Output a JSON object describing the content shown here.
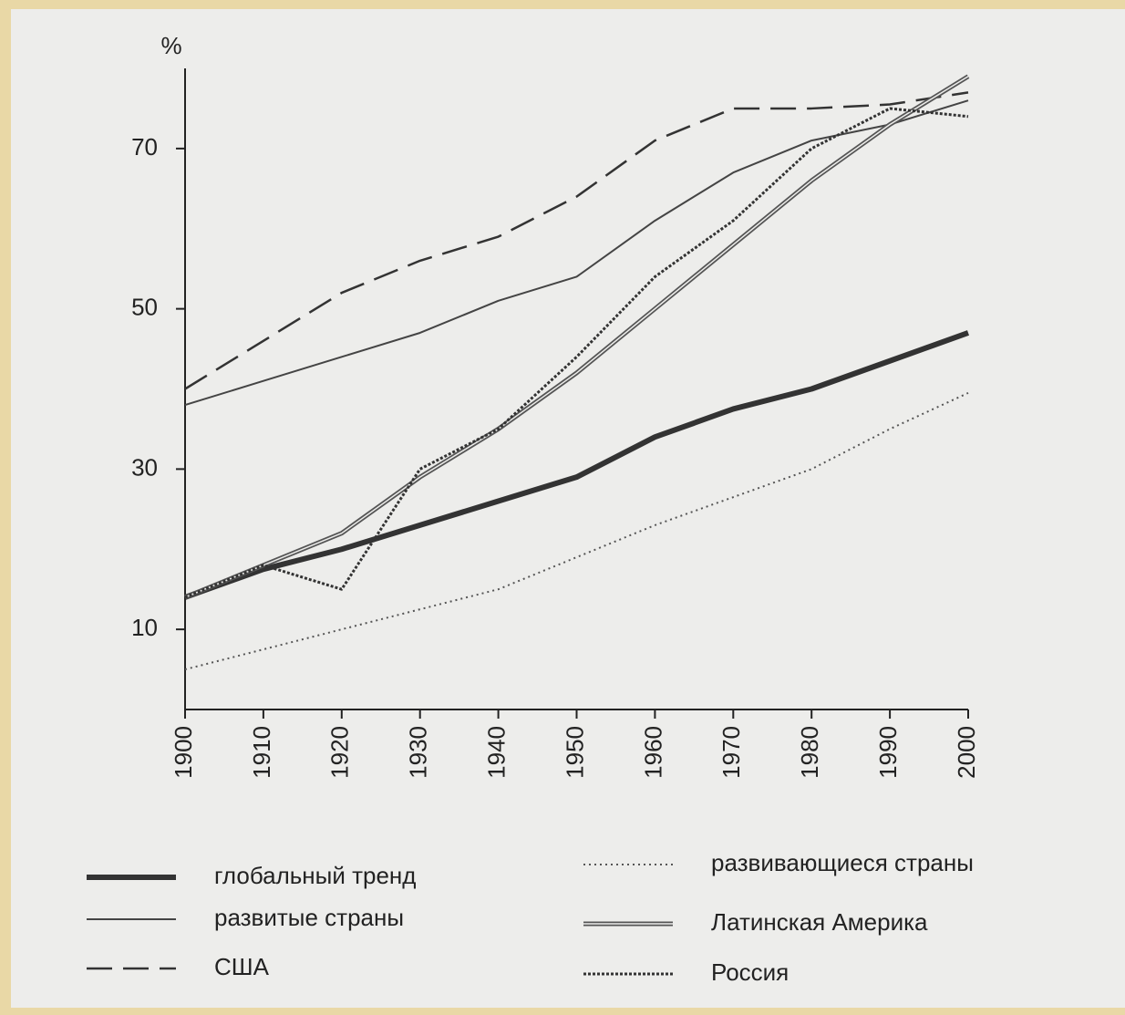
{
  "chart_data": {
    "type": "line",
    "y_label": "%",
    "x": [
      1900,
      1910,
      1920,
      1930,
      1940,
      1950,
      1960,
      1970,
      1980,
      1990,
      2000
    ],
    "xlim": [
      1900,
      2000
    ],
    "xticks": [
      1900,
      1910,
      1920,
      1930,
      1940,
      1950,
      1960,
      1970,
      1980,
      1990,
      2000
    ],
    "ylim": [
      0,
      80
    ],
    "yticks": [
      10,
      30,
      50,
      70
    ],
    "series": [
      {
        "name": "глобальный тренд",
        "color": "#333333",
        "style": "thick",
        "values": [
          14,
          17.5,
          20,
          23,
          26,
          29,
          34,
          37.5,
          40,
          43.5,
          47
        ]
      },
      {
        "name": "развитые страны",
        "color": "#444444",
        "style": "thin",
        "values": [
          38,
          41,
          44,
          47,
          51,
          54,
          61,
          67,
          71,
          73,
          76
        ]
      },
      {
        "name": "США",
        "color": "#333333",
        "style": "dashed",
        "values": [
          40,
          46,
          52,
          56,
          59,
          64,
          71,
          75,
          75,
          75.5,
          77
        ]
      },
      {
        "name": "развивающиеся страны",
        "color": "#555555",
        "style": "dotted",
        "values": [
          5,
          7.5,
          10,
          12.5,
          15,
          19,
          23,
          26.5,
          30,
          35,
          39.5
        ]
      },
      {
        "name": "Латинская Америка",
        "color": "#555555",
        "style": "double",
        "values": [
          14,
          18,
          22,
          29,
          35,
          42,
          50,
          58,
          66,
          73,
          79
        ]
      },
      {
        "name": "Россия",
        "color": "#333333",
        "style": "dense-dotted",
        "values": [
          14,
          18,
          15,
          30,
          35,
          44,
          54,
          61,
          70,
          75,
          74
        ]
      }
    ]
  }
}
